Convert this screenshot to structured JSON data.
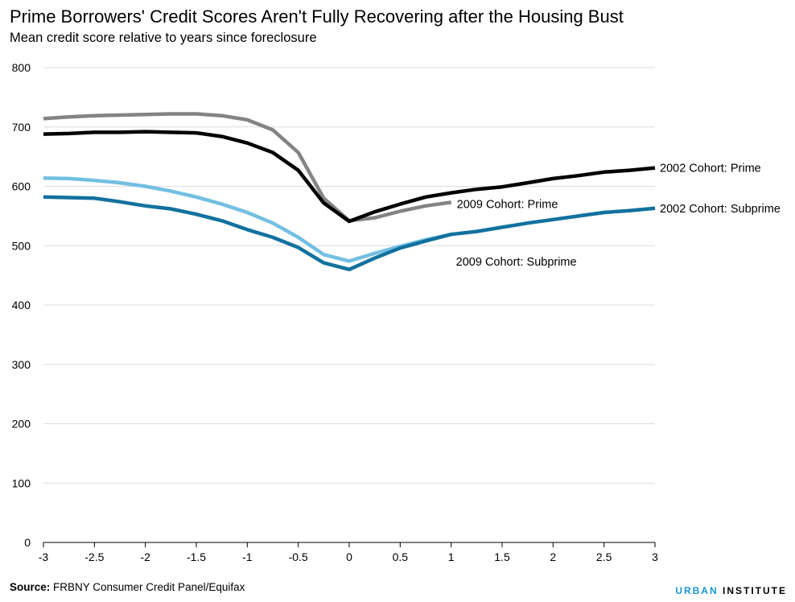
{
  "chart_data": {
    "type": "line",
    "title": "Prime Borrowers' Credit Scores Aren't Fully Recovering after the Housing Bust",
    "subtitle": "Mean credit score relative to years since foreclosure",
    "xlabel": "",
    "ylabel": "",
    "xlim": [
      -3,
      3
    ],
    "ylim": [
      0,
      800
    ],
    "x_ticks": [
      "-3",
      "-2.5",
      "-2",
      "-1.5",
      "-1",
      "-0.5",
      "0",
      "0.5",
      "1",
      "1.5",
      "2",
      "2.5",
      "3"
    ],
    "y_ticks": [
      "0",
      "100",
      "200",
      "300",
      "400",
      "500",
      "600",
      "700",
      "800"
    ],
    "grid": "horizontal",
    "legend": "direct-labels",
    "series": [
      {
        "name": "2009 Cohort: Prime",
        "color": "#848484",
        "x": [
          -3,
          -2.75,
          -2.5,
          -2.25,
          -2,
          -1.75,
          -1.5,
          -1.25,
          -1,
          -0.75,
          -0.5,
          -0.25,
          0,
          0.25,
          0.5,
          0.75,
          1
        ],
        "y": [
          714,
          717,
          719,
          720,
          721,
          722,
          722,
          719,
          712,
          695,
          657,
          580,
          542,
          547,
          558,
          567,
          573
        ]
      },
      {
        "name": "2002 Cohort: Prime",
        "color": "#000000",
        "x": [
          -3,
          -2.75,
          -2.5,
          -2.25,
          -2,
          -1.75,
          -1.5,
          -1.25,
          -1,
          -0.75,
          -0.5,
          -0.25,
          0,
          0.25,
          0.5,
          0.75,
          1,
          1.25,
          1.5,
          1.75,
          2,
          2.25,
          2.5,
          2.75,
          3
        ],
        "y": [
          688,
          689,
          691,
          691,
          692,
          691,
          690,
          684,
          673,
          657,
          627,
          572,
          541,
          557,
          570,
          582,
          589,
          595,
          599,
          606,
          613,
          618,
          624,
          627,
          631
        ]
      },
      {
        "name": "2009 Cohort: Subprime",
        "color": "#73bfe2",
        "x": [
          -3,
          -2.75,
          -2.5,
          -2.25,
          -2,
          -1.75,
          -1.5,
          -1.25,
          -1,
          -0.75,
          -0.5,
          -0.25,
          0,
          0.25,
          0.5,
          0.75,
          1
        ],
        "y": [
          614,
          613,
          610,
          606,
          600,
          592,
          582,
          570,
          556,
          538,
          514,
          485,
          474,
          487,
          499,
          510,
          519
        ]
      },
      {
        "name": "2002 Cohort: Subprime",
        "color": "#12719e",
        "x": [
          -3,
          -2.75,
          -2.5,
          -2.25,
          -2,
          -1.75,
          -1.5,
          -1.25,
          -1,
          -0.75,
          -0.5,
          -0.25,
          0,
          0.25,
          0.5,
          0.75,
          1,
          1.25,
          1.5,
          1.75,
          2,
          2.25,
          2.5,
          2.75,
          3
        ],
        "y": [
          582,
          581,
          580,
          574,
          567,
          562,
          553,
          542,
          527,
          514,
          497,
          471,
          460,
          479,
          496,
          508,
          519,
          524,
          531,
          538,
          544,
          550,
          556,
          559,
          563
        ]
      }
    ]
  },
  "labels": {
    "title": "Prime Borrowers' Credit Scores Aren't Fully Recovering after the Housing Bust",
    "subtitle": "Mean credit score relative to years since foreclosure",
    "source_label": "Source:",
    "source_text": " FRBNY Consumer Credit Panel/Equifax",
    "logo_urban": "URBAN",
    "logo_institute": " INSTITUTE"
  }
}
